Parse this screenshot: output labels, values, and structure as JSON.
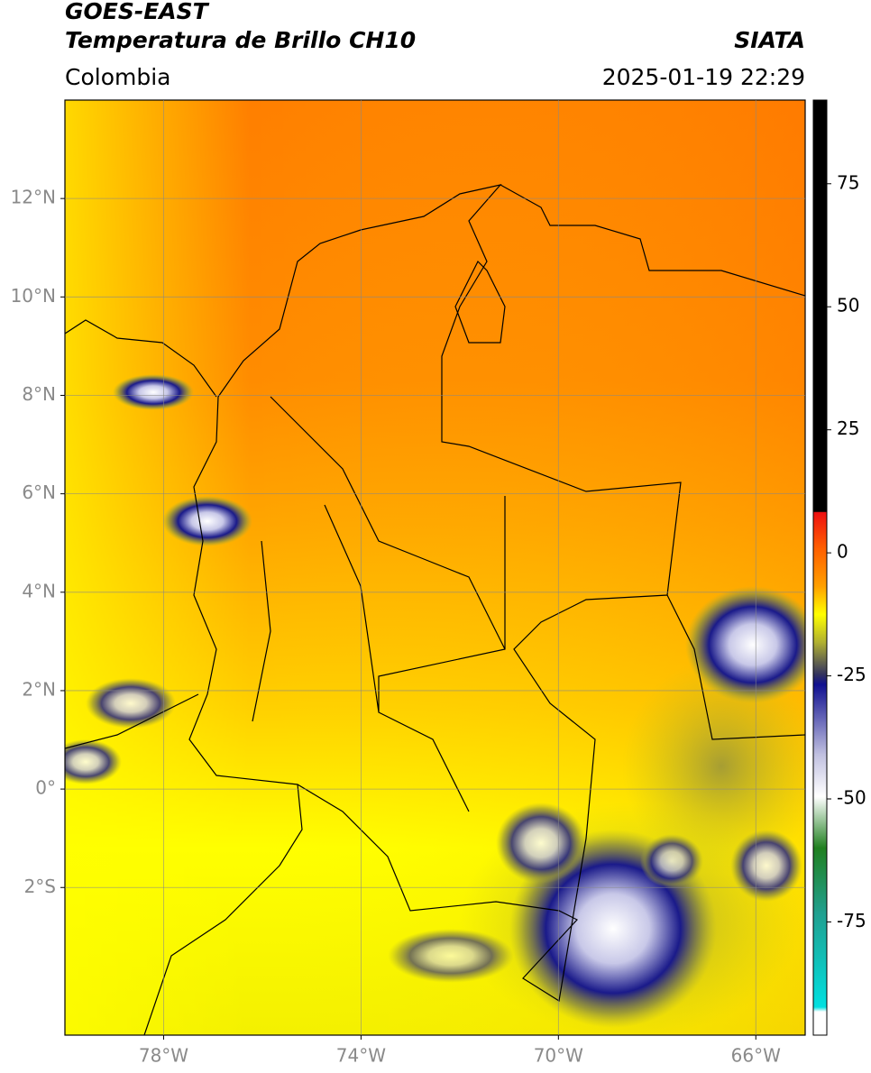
{
  "header": {
    "satellite": "GOES-EAST",
    "product": "Temperatura de Brillo CH10",
    "source": "SIATA",
    "region": "Colombia",
    "datetime": "2025-01-19 22:29"
  },
  "map": {
    "lon_range": [
      -80,
      -65
    ],
    "lat_range": [
      -5,
      14
    ],
    "grid": true,
    "lon_ticks": [
      {
        "value": -78,
        "label": "78°W"
      },
      {
        "value": -74,
        "label": "74°W"
      },
      {
        "value": -70,
        "label": "70°W"
      },
      {
        "value": -66,
        "label": "66°W"
      }
    ],
    "lat_ticks": [
      {
        "value": 12,
        "label": "12°N"
      },
      {
        "value": 10,
        "label": "10°N"
      },
      {
        "value": 8,
        "label": "8°N"
      },
      {
        "value": 6,
        "label": "6°N"
      },
      {
        "value": 4,
        "label": "4°N"
      },
      {
        "value": 2,
        "label": "2°N"
      },
      {
        "value": 0,
        "label": "0°"
      },
      {
        "value": -2,
        "label": "2°S"
      }
    ]
  },
  "colorbar": {
    "range": [
      -98,
      92
    ],
    "ticks": [
      75,
      50,
      25,
      0,
      -25,
      -50,
      -75
    ]
  }
}
